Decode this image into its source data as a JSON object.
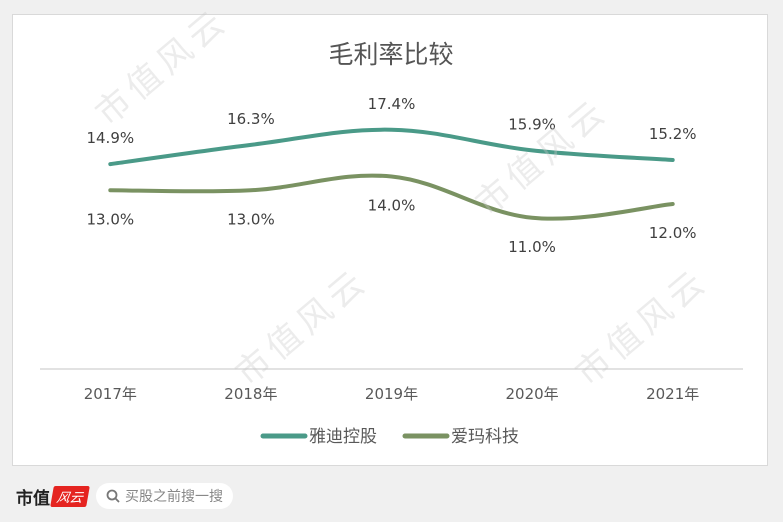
{
  "chart_data": {
    "type": "line",
    "title": "毛利率比较",
    "categories": [
      "2017年",
      "2018年",
      "2019年",
      "2020年",
      "2021年"
    ],
    "series": [
      {
        "name": "雅迪控股",
        "values": [
          14.9,
          16.3,
          17.4,
          15.9,
          15.2
        ],
        "labels": [
          "14.9%",
          "16.3%",
          "17.4%",
          "15.9%",
          "15.2%"
        ],
        "color": "#4a9a88",
        "label_position": "above"
      },
      {
        "name": "爱玛科技",
        "values": [
          13.0,
          13.0,
          14.0,
          11.0,
          12.0
        ],
        "labels": [
          "13.0%",
          "13.0%",
          "14.0%",
          "11.0%",
          "12.0%"
        ],
        "color": "#7a9262",
        "label_position": "below"
      }
    ],
    "xlabel": "",
    "ylabel": "",
    "ylim": [
      0,
      20
    ],
    "grid": false,
    "legend": "bottom",
    "smooth": true
  },
  "watermark": "市值风云",
  "footer": {
    "brand": "市值",
    "logo": "风云",
    "search_placeholder": "买股之前搜一搜"
  }
}
